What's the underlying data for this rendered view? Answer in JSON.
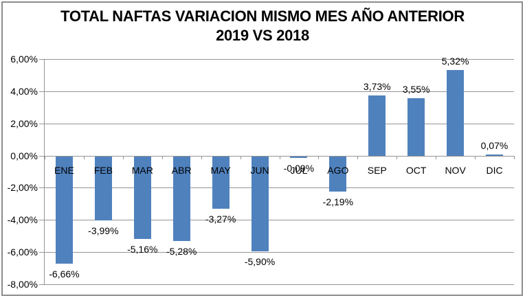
{
  "window": {
    "background": "#FFFFFF",
    "border_color": "#8C8C8C"
  },
  "chart_data": {
    "type": "bar",
    "title": "TOTAL NAFTAS VARIACION MISMO MES AÑO ANTERIOR",
    "subtitle": "2019 VS 2018",
    "categories": [
      "ENE",
      "FEB",
      "MAR",
      "ABR",
      "MAY",
      "JUN",
      "JUL",
      "AGO",
      "SEP",
      "OCT",
      "NOV",
      "DIC"
    ],
    "values": [
      -6.66,
      -3.99,
      -5.16,
      -5.28,
      -3.27,
      -5.9,
      -0.09,
      -2.19,
      3.73,
      3.55,
      5.32,
      0.07
    ],
    "data_labels": [
      "-6,66%",
      "-3,99%",
      "-5,16%",
      "-5,28%",
      "-3,27%",
      "-5,90%",
      "-0,09%",
      "-2,19%",
      "3,73%",
      "3,55%",
      "5,32%",
      "0,07%"
    ],
    "xlabel": "",
    "ylabel": "",
    "ylim": [
      -8,
      6
    ],
    "ytick_values": [
      6,
      4,
      2,
      0,
      -2,
      -4,
      -6,
      -8
    ],
    "ytick_labels": [
      "6,00%",
      "4,00%",
      "2,00%",
      "0,00%",
      "-2,00%",
      "-4,00%",
      "-6,00%",
      "-8,00%"
    ],
    "grid": true,
    "legend_position": "none",
    "bar_color": "#4F81BD",
    "gridline_color": "#949494",
    "axis_color": "#949494",
    "label_color": "#000000",
    "title_color": "#000000"
  }
}
